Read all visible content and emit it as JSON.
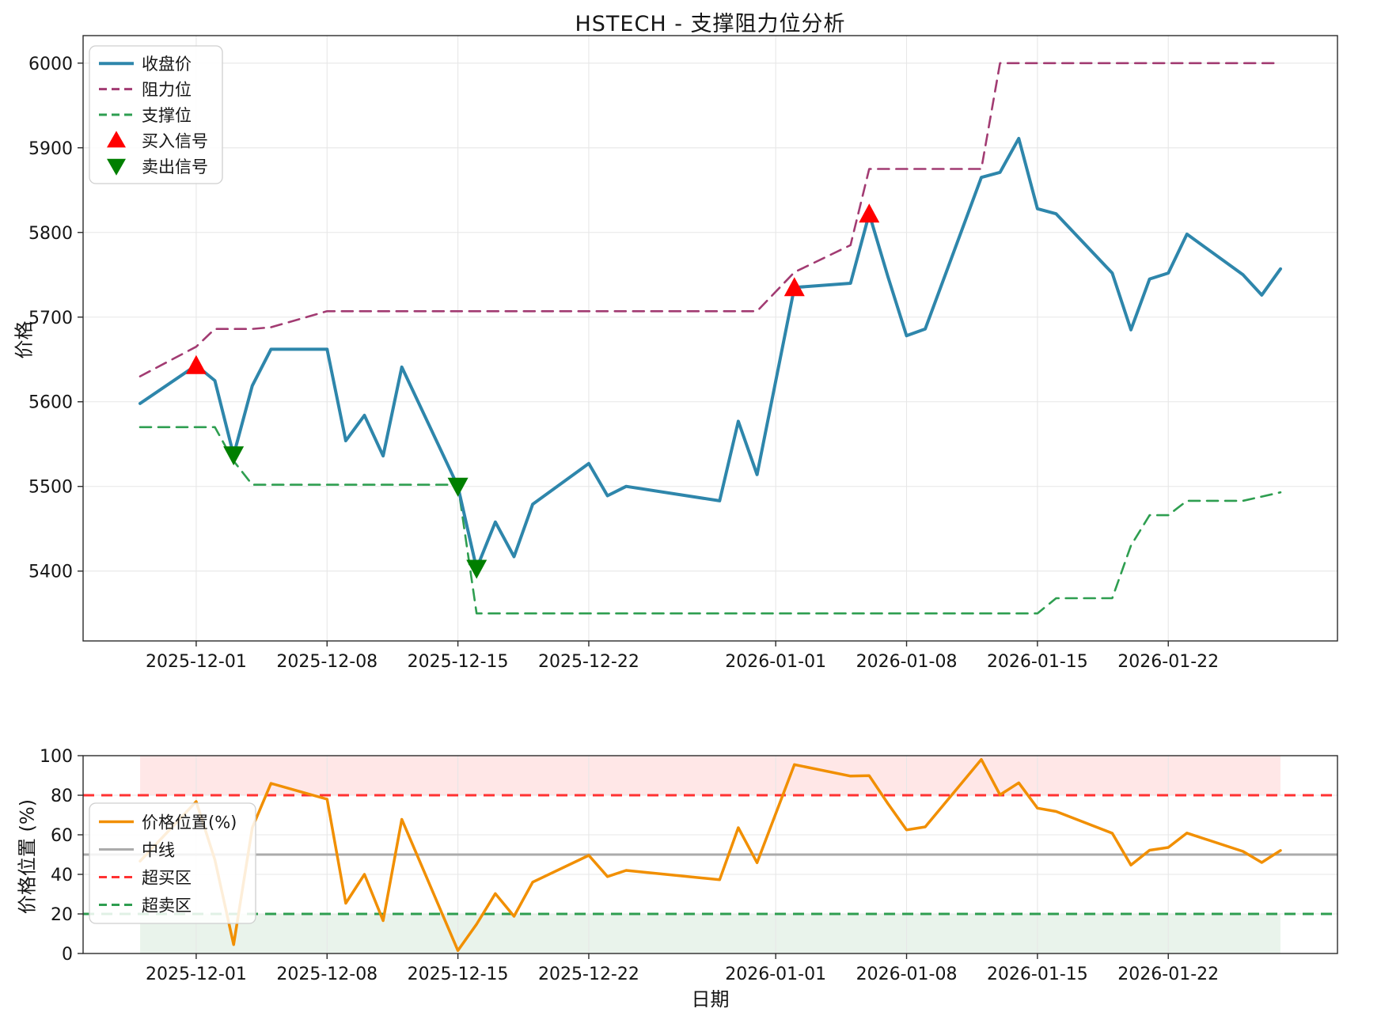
{
  "figure": {
    "title": "HSTECH - 支撑阻力位分析",
    "xlabel": "日期",
    "ylabel_top": "价格",
    "ylabel_bottom": "价格位置 (%)"
  },
  "colors": {
    "close": "#2E86AB",
    "resistance": "#A23B72",
    "support": "#2E9E50",
    "buy": "#FF0000",
    "sell": "#007F00",
    "position": "#F18F01",
    "midline": "#ABABAB",
    "overbought": "#FF3232",
    "oversold": "#2E9E50",
    "band_overbought": "rgba(255,60,60,0.12)",
    "band_oversold": "rgba(40,140,60,0.10)",
    "grid": "#e7e7e7",
    "spine": "#2a2a2a",
    "tick_text": "#151515"
  },
  "chart_data": [
    {
      "type": "line",
      "panel": "top",
      "title": "HSTECH - 支撑阻力位分析",
      "ylabel": "价格",
      "ylim": [
        5317.5,
        6032.5
      ],
      "yticks": [
        5400,
        5500,
        5600,
        5700,
        5800,
        5900,
        6000
      ],
      "xticks": [
        "2025-12-01",
        "2025-12-08",
        "2025-12-15",
        "2025-12-22",
        "2026-01-01",
        "2026-01-08",
        "2026-01-15",
        "2026-01-22"
      ],
      "grid": true,
      "legend_position": "upper left",
      "x": [
        "2025-11-28",
        "2025-12-01",
        "2025-12-02",
        "2025-12-03",
        "2025-12-04",
        "2025-12-05",
        "2025-12-08",
        "2025-12-09",
        "2025-12-10",
        "2025-12-11",
        "2025-12-12",
        "2025-12-15",
        "2025-12-16",
        "2025-12-17",
        "2025-12-18",
        "2025-12-19",
        "2025-12-22",
        "2025-12-23",
        "2025-12-24",
        "2025-12-29",
        "2025-12-30",
        "2025-12-31",
        "2026-01-02",
        "2026-01-05",
        "2026-01-06",
        "2026-01-07",
        "2026-01-08",
        "2026-01-09",
        "2026-01-12",
        "2026-01-13",
        "2026-01-14",
        "2026-01-15",
        "2026-01-16",
        "2026-01-19",
        "2026-01-20",
        "2026-01-21",
        "2026-01-22",
        "2026-01-23",
        "2026-01-26",
        "2026-01-27",
        "2026-01-28"
      ],
      "series": [
        {
          "name": "收盘价",
          "style": "solid",
          "width": 4,
          "color_key": "close",
          "values": [
            5598,
            5643,
            5625,
            5537,
            5619,
            5662,
            5662,
            5554,
            5584,
            5536,
            5641,
            5500,
            5403,
            5458,
            5417,
            5479,
            5527,
            5489,
            5500,
            5483,
            5577,
            5514,
            5735,
            5740,
            5822,
            5748,
            5678,
            5686,
            5865,
            5871,
            5911,
            5828,
            5822,
            5752,
            5685,
            5745,
            5752,
            5798,
            5750,
            5726,
            5757
          ]
        },
        {
          "name": "阻力位",
          "style": "dashed",
          "width": 2.6,
          "color_key": "resistance",
          "values": [
            5630,
            5665,
            5686,
            5686,
            5686,
            5688,
            5707,
            5707,
            5707,
            5707,
            5707,
            5707,
            5707,
            5707,
            5707,
            5707,
            5707,
            5707,
            5707,
            5707,
            5707,
            5707,
            5753,
            5785,
            5875,
            5875,
            5875,
            5875,
            5875,
            6000,
            6000,
            6000,
            6000,
            6000,
            6000,
            6000,
            6000,
            6000,
            6000,
            6000,
            6000
          ]
        },
        {
          "name": "支撑位",
          "style": "dashed",
          "width": 2.6,
          "color_key": "support",
          "values": [
            5570,
            5570,
            5570,
            5530,
            5502,
            5502,
            5502,
            5502,
            5502,
            5502,
            5502,
            5502,
            5350,
            5350,
            5350,
            5350,
            5350,
            5350,
            5350,
            5350,
            5350,
            5350,
            5350,
            5350,
            5350,
            5350,
            5350,
            5350,
            5350,
            5350,
            5350,
            5350,
            5368,
            5368,
            5430,
            5466,
            5466,
            5483,
            5483,
            5488,
            5493
          ]
        }
      ],
      "signals": {
        "buy": {
          "label": "买入信号",
          "color_key": "buy",
          "shape": "triangle-up",
          "points": [
            {
              "date": "2025-12-01",
              "value": 5643
            },
            {
              "date": "2026-01-02",
              "value": 5735
            },
            {
              "date": "2026-01-06",
              "value": 5822
            }
          ]
        },
        "sell": {
          "label": "卖出信号",
          "color_key": "sell",
          "shape": "triangle-down",
          "points": [
            {
              "date": "2025-12-03",
              "value": 5537
            },
            {
              "date": "2025-12-15",
              "value": 5500
            },
            {
              "date": "2025-12-16",
              "value": 5403
            }
          ]
        }
      }
    },
    {
      "type": "line",
      "panel": "bottom",
      "ylabel": "价格位置 (%)",
      "xlabel": "日期",
      "ylim": [
        0,
        100
      ],
      "yticks": [
        0,
        20,
        40,
        60,
        80,
        100
      ],
      "xticks": [
        "2025-12-01",
        "2025-12-08",
        "2025-12-15",
        "2025-12-22",
        "2026-01-01",
        "2026-01-08",
        "2026-01-15",
        "2026-01-22"
      ],
      "grid": true,
      "x": [
        "2025-11-28",
        "2025-12-01",
        "2025-12-02",
        "2025-12-03",
        "2025-12-04",
        "2025-12-05",
        "2025-12-08",
        "2025-12-09",
        "2025-12-10",
        "2025-12-11",
        "2025-12-12",
        "2025-12-15",
        "2025-12-16",
        "2025-12-17",
        "2025-12-18",
        "2025-12-19",
        "2025-12-22",
        "2025-12-23",
        "2025-12-24",
        "2025-12-29",
        "2025-12-30",
        "2025-12-31",
        "2026-01-02",
        "2026-01-05",
        "2026-01-06",
        "2026-01-07",
        "2026-01-08",
        "2026-01-09",
        "2026-01-12",
        "2026-01-13",
        "2026-01-14",
        "2026-01-15",
        "2026-01-16",
        "2026-01-19",
        "2026-01-20",
        "2026-01-21",
        "2026-01-22",
        "2026-01-23",
        "2026-01-26",
        "2026-01-27",
        "2026-01-28"
      ],
      "series": [
        {
          "name": "价格位置(%)",
          "style": "solid",
          "width": 3.5,
          "color_key": "position",
          "values": [
            46.7,
            76.8,
            47.4,
            4.5,
            63.6,
            86.0,
            78.0,
            25.4,
            40.0,
            16.6,
            67.8,
            1.5,
            14.8,
            30.3,
            18.8,
            36.1,
            49.6,
            38.9,
            42.0,
            37.3,
            63.6,
            45.9,
            95.5,
            89.7,
            89.9,
            75.8,
            62.5,
            64.0,
            98.1,
            80.2,
            86.3,
            73.5,
            71.8,
            60.8,
            44.7,
            52.2,
            53.6,
            60.9,
            51.6,
            46.0,
            52.1
          ]
        }
      ],
      "hlines": [
        {
          "name": "中线",
          "value": 50,
          "style": "solid",
          "width": 3,
          "color_key": "midline"
        },
        {
          "name": "超买区",
          "value": 80,
          "style": "dashed",
          "width": 3,
          "color_key": "overbought"
        },
        {
          "name": "超卖区",
          "value": 20,
          "style": "dashed",
          "width": 3,
          "color_key": "oversold"
        }
      ],
      "bands": [
        {
          "name": "overbought-band",
          "from": 80,
          "to": 100,
          "color_key": "band_overbought"
        },
        {
          "name": "oversold-band",
          "from": 0,
          "to": 20,
          "color_key": "band_oversold"
        }
      ]
    }
  ]
}
